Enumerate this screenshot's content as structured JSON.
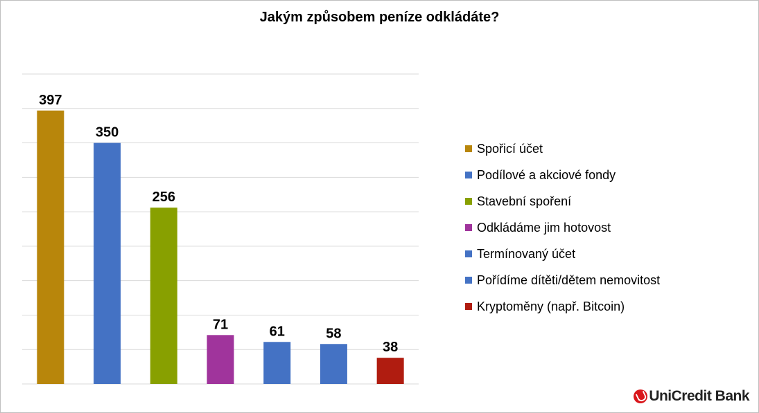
{
  "chart_data": {
    "type": "bar",
    "title": "Jakým způsobem peníze odkládáte?",
    "categories": [
      "Spořicí účet",
      "Podílové a akciové fondy",
      "Stavební spoření",
      "Odkládáme jim hotovost",
      "Termínovaný účet",
      "Pořídíme dítěti/dětem nemovitost",
      "Kryptoměny (např. Bitcoin)"
    ],
    "values": [
      397,
      350,
      256,
      71,
      61,
      58,
      38
    ],
    "colors": [
      "#b8860b",
      "#4472c4",
      "#88a000",
      "#a0349c",
      "#4472c4",
      "#4472c4",
      "#b01c10"
    ],
    "ylim": [
      0,
      450
    ],
    "grid": true,
    "legend_position": "right"
  },
  "logo": {
    "text": "UniCredit Bank"
  }
}
